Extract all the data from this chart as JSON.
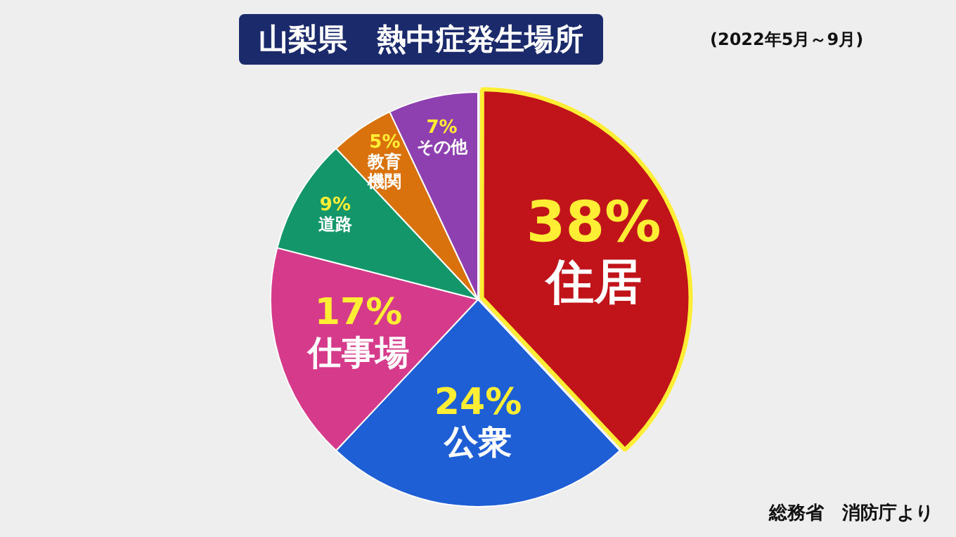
{
  "chart_data": {
    "type": "pie",
    "title": "山梨県　熱中症発生場所",
    "subtitle": "(2022年5月～9月)",
    "categories": [
      "住居",
      "公衆",
      "仕事場",
      "道路",
      "教育機関",
      "その他"
    ],
    "values": [
      38,
      24,
      17,
      9,
      5,
      7
    ],
    "value_labels": [
      "38%",
      "24%",
      "17%",
      "9%",
      "5%",
      "7%"
    ],
    "colors": [
      "#c0141a",
      "#1f5fd6",
      "#d63a8a",
      "#13966a",
      "#d9720c",
      "#8e3fb0"
    ],
    "annotations": [
      "総務省　消防庁より"
    ]
  }
}
